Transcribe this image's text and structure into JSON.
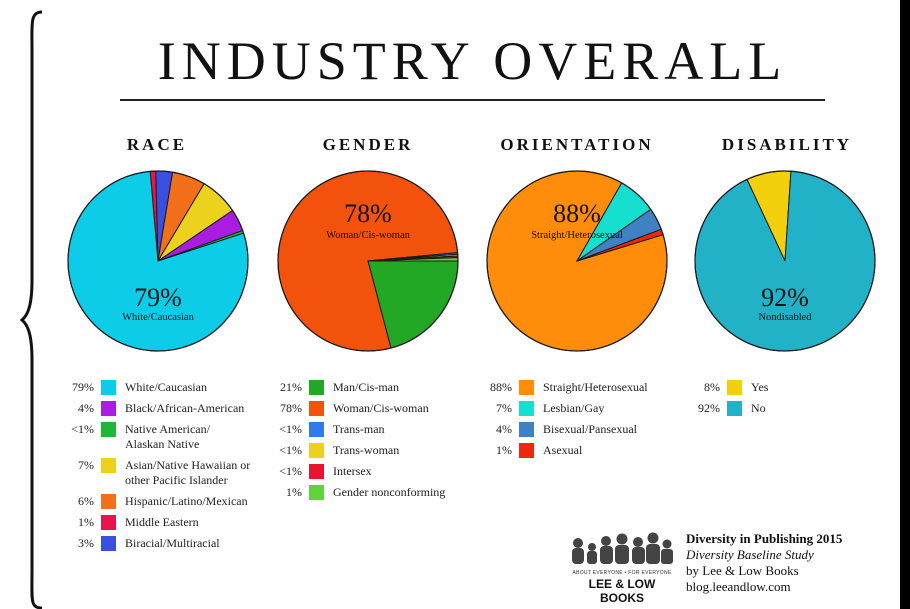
{
  "title": "INDUSTRY OVERALL",
  "chart_data": [
    {
      "type": "pie",
      "title": "RACE",
      "center_pct": "79%",
      "center_label": "White/Caucasian",
      "slices": [
        {
          "label": "White/Caucasian",
          "pct_text": "79%",
          "value": 79,
          "color": "#0ccce8"
        },
        {
          "label": "Black/African-American",
          "pct_text": "4%",
          "value": 4,
          "color": "#a81de0"
        },
        {
          "label": "Native American/\nAlaskan Native",
          "pct_text": "<1%",
          "value": 0.5,
          "color": "#1fb53a"
        },
        {
          "label": "Asian/Native Hawaiian or\nother Pacific Islander",
          "pct_text": "7%",
          "value": 7,
          "color": "#ecd21c"
        },
        {
          "label": "Hispanic/Latino/Mexican",
          "pct_text": "6%",
          "value": 6,
          "color": "#f2701c"
        },
        {
          "label": "Middle Eastern",
          "pct_text": "1%",
          "value": 1,
          "color": "#e8154a"
        },
        {
          "label": "Biracial/Multiracial",
          "pct_text": "3%",
          "value": 3,
          "color": "#3a4ee0"
        }
      ]
    },
    {
      "type": "pie",
      "title": "GENDER",
      "center_pct": "78%",
      "center_label": "Woman/Cis-woman",
      "slices": [
        {
          "label": "Man/Cis-man",
          "pct_text": "21%",
          "value": 21,
          "color": "#22a825"
        },
        {
          "label": "Woman/Cis-woman",
          "pct_text": "78%",
          "value": 78,
          "color": "#f2520c"
        },
        {
          "label": "Trans-man",
          "pct_text": "<1%",
          "value": 0.3,
          "color": "#2f7bea"
        },
        {
          "label": "Trans-woman",
          "pct_text": "<1%",
          "value": 0.3,
          "color": "#ecd21c"
        },
        {
          "label": "Intersex",
          "pct_text": "<1%",
          "value": 0.3,
          "color": "#e81530"
        },
        {
          "label": "Gender nonconforming",
          "pct_text": "1%",
          "value": 0.6,
          "color": "#5fd33a"
        }
      ]
    },
    {
      "type": "pie",
      "title": "ORIENTATION",
      "center_pct": "88%",
      "center_label": "Straight/Heterosexual",
      "slices": [
        {
          "label": "Straight/Heterosexual",
          "pct_text": "88%",
          "value": 88,
          "color": "#ff8c0a"
        },
        {
          "label": "Lesbian/Gay",
          "pct_text": "7%",
          "value": 7,
          "color": "#15e0cf"
        },
        {
          "label": "Bisexual/Pansexual",
          "pct_text": "4%",
          "value": 4,
          "color": "#3e82c4"
        },
        {
          "label": "Asexual",
          "pct_text": "1%",
          "value": 1,
          "color": "#f0260c"
        }
      ]
    },
    {
      "type": "pie",
      "title": "DISABILITY",
      "center_pct": "92%",
      "center_label": "Nondisabled",
      "slices": [
        {
          "label": "Yes",
          "pct_text": "8%",
          "value": 8,
          "color": "#f2d00e"
        },
        {
          "label": "No",
          "pct_text": "92%",
          "value": 92,
          "color": "#22b2c8"
        }
      ]
    }
  ],
  "credit": {
    "line1": "Diversity in Publishing 2015",
    "line2": "Diversity Baseline Study",
    "line3": "by Lee & Low Books",
    "line4": "blog.leeandlow.com"
  },
  "logo": {
    "tagline": "ABOUT EVERYONE • FOR EVERYONE",
    "name": "LEE & LOW BOOKS"
  }
}
